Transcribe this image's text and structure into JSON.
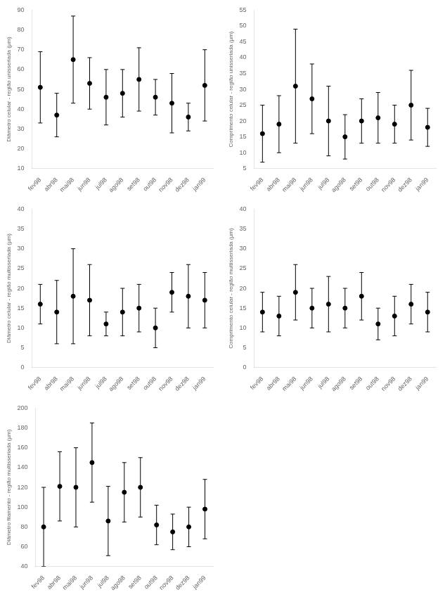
{
  "chart_data": [
    {
      "type": "scatter",
      "ylabel": "Diâmetro celular - região unisseriada (µm)",
      "categories": [
        "fev98",
        "abr98",
        "mai98",
        "jun98",
        "jul98",
        "ago98",
        "set98",
        "out98",
        "nov98",
        "dez98",
        "jan99"
      ],
      "values": [
        51,
        37,
        65,
        53,
        46,
        48,
        55,
        46,
        43,
        36,
        52
      ],
      "errors": [
        18,
        11,
        22,
        13,
        14,
        12,
        16,
        9,
        15,
        7,
        18
      ],
      "ylim": [
        10,
        90
      ],
      "yticks": [
        10,
        20,
        30,
        40,
        50,
        60,
        70,
        80,
        90
      ],
      "color": "#000000",
      "marker": "o",
      "grid": false
    },
    {
      "type": "scatter",
      "ylabel": "Comprimento celular - região unisseriada (µm)",
      "categories": [
        "fev98",
        "abr98",
        "mai98",
        "jun98",
        "jul98",
        "ago98",
        "set98",
        "out98",
        "nov98",
        "dez98",
        "jan99"
      ],
      "values": [
        16,
        19,
        31,
        27,
        20,
        15,
        20,
        21,
        19,
        25,
        18
      ],
      "errors": [
        9,
        9,
        18,
        11,
        11,
        7,
        7,
        8,
        6,
        11,
        6
      ],
      "ylim": [
        5,
        55
      ],
      "yticks": [
        5,
        10,
        15,
        20,
        25,
        30,
        35,
        40,
        45,
        50,
        55
      ],
      "color": "#000000",
      "marker": "o",
      "grid": false
    },
    {
      "type": "scatter",
      "ylabel": "Diâmetro celular - região multisseriada (µm)",
      "categories": [
        "fev98",
        "abr98",
        "mai98",
        "jun98",
        "jul98",
        "ago98",
        "set98",
        "out98",
        "nov98",
        "dez98",
        "jan99"
      ],
      "values": [
        16,
        14,
        18,
        17,
        11,
        14,
        15,
        10,
        19,
        18,
        17
      ],
      "errors": [
        5,
        8,
        12,
        9,
        3,
        6,
        6,
        5,
        5,
        8,
        7
      ],
      "ylim": [
        0,
        40
      ],
      "yticks": [
        0,
        5,
        10,
        15,
        20,
        25,
        30,
        35,
        40
      ],
      "color": "#000000",
      "marker": "o",
      "grid": false
    },
    {
      "type": "scatter",
      "ylabel": "Comprimento celular - região multisseriada (µm)",
      "categories": [
        "fev98",
        "abr98",
        "mai98",
        "jun98",
        "jul98",
        "ago98",
        "set98",
        "out98",
        "nov98",
        "dez98",
        "jan99"
      ],
      "values": [
        14,
        13,
        19,
        15,
        16,
        15,
        18,
        11,
        13,
        16,
        14
      ],
      "errors": [
        5,
        5,
        7,
        5,
        7,
        5,
        6,
        4,
        5,
        5,
        5
      ],
      "ylim": [
        0,
        40
      ],
      "yticks": [
        0,
        5,
        10,
        15,
        20,
        25,
        30,
        35,
        40
      ],
      "color": "#000000",
      "marker": "o",
      "grid": false
    },
    {
      "type": "scatter",
      "ylabel": "Diâmetro filamento - região multisseriada (µm)",
      "categories": [
        "fev98",
        "abr98",
        "mai98",
        "jun98",
        "jul98",
        "ago98",
        "set98",
        "out98",
        "nov98",
        "dez98",
        "jan99"
      ],
      "values": [
        80,
        121,
        120,
        145,
        86,
        115,
        120,
        82,
        75,
        80,
        98
      ],
      "errors": [
        40,
        35,
        40,
        40,
        35,
        30,
        30,
        20,
        18,
        20,
        30
      ],
      "ylim": [
        40,
        200
      ],
      "yticks": [
        40,
        60,
        80,
        100,
        120,
        140,
        160,
        180,
        200
      ],
      "color": "#000000",
      "marker": "o",
      "grid": false
    }
  ]
}
